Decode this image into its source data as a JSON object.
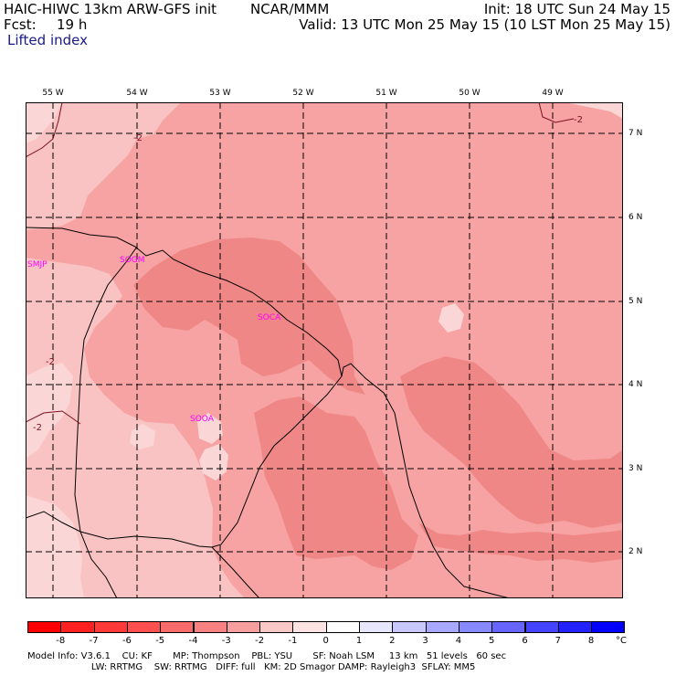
{
  "header": {
    "model": "HAIC-HIWC 13km ARW-GFS init",
    "org": "NCAR/MMM",
    "init": "Init: 18 UTC Sun 24 May 15",
    "fcst_label": "Fcst:",
    "fcst_value": "19 h",
    "valid": "Valid: 13 UTC Mon 25 May 15 (10 LST Mon 25 May 15)",
    "field": "Lifted index"
  },
  "axes": {
    "longitudes": [
      "55 W",
      "54 W",
      "53 W",
      "52 W",
      "51 W",
      "50 W",
      "49 W"
    ],
    "latitudes": [
      "7 N",
      "6 N",
      "5 N",
      "4 N",
      "3 N",
      "2 N"
    ]
  },
  "stations": [
    "SMJP",
    "SOGM",
    "SOCA",
    "SOOA"
  ],
  "contour_labels": [
    "-2",
    "-2",
    "-2",
    "-2"
  ],
  "colorbar": {
    "labels": [
      "-8",
      "-7",
      "-6",
      "-5",
      "-4",
      "-3",
      "-2",
      "-1",
      "0",
      "1",
      "2",
      "3",
      "4",
      "5",
      "6",
      "7",
      "8"
    ],
    "unit": "°C",
    "colors": [
      "#ff0000",
      "#ff2020",
      "#ff3838",
      "#ff5050",
      "#f96a6a",
      "#f88181",
      "#f79f9f",
      "#fbc8c8",
      "#ffe2e2",
      "#ffffff",
      "#e6e6ff",
      "#c8c8ff",
      "#a8a8ff",
      "#8888ff",
      "#6666ff",
      "#4444ff",
      "#2222ff",
      "#0000ff"
    ]
  },
  "colors": {
    "li_m5": "#f08787",
    "li_m4": "#f7a3a3",
    "li_m3": "#fac3c3",
    "li_m2": "#fbd6d6",
    "station": "#ff00ff",
    "contour_label": "#7a1020"
  },
  "footer": {
    "line1": "Model Info: V3.6.1    CU: KF       MP: Thompson    PBL: YSU       SF: Noah LSM     13 km   51 levels   60 sec",
    "line2": "                      LW: RRTMG    SW: RRTMG   DIFF: full   KM: 2D Smagor DAMP: Rayleigh3  SFLAY: MM5"
  }
}
